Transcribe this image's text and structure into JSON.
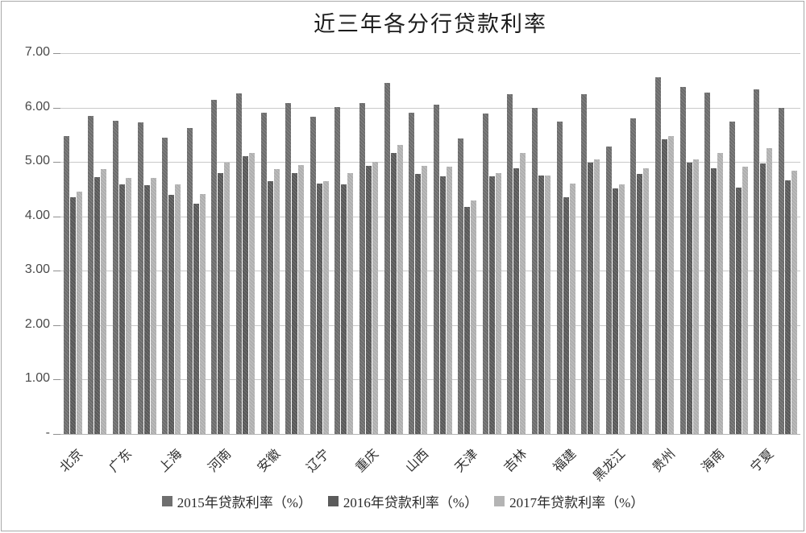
{
  "chart_data": {
    "type": "bar",
    "title": "近三年各分行贷款利率",
    "xlabel": "",
    "ylabel": "",
    "ylim": [
      0,
      7
    ],
    "grid": true,
    "legend_position": "bottom",
    "yticks": [
      {
        "label": "7.00",
        "value": 7
      },
      {
        "label": "6.00",
        "value": 6
      },
      {
        "label": "5.00",
        "value": 5
      },
      {
        "label": "4.00",
        "value": 4
      },
      {
        "label": "3.00",
        "value": 3
      },
      {
        "label": "2.00",
        "value": 2
      },
      {
        "label": "1.00",
        "value": 1
      },
      {
        "label": "-",
        "value": 0
      }
    ],
    "categories": [
      "北京",
      "",
      "广东",
      "",
      "上海",
      "",
      "河南",
      "",
      "安徽",
      "",
      "辽宁",
      "",
      "重庆",
      "",
      "山西",
      "",
      "天津",
      "",
      "吉林",
      "",
      "福建",
      "",
      "黑龙江",
      "",
      "贵州",
      "",
      "海南",
      "",
      "宁夏",
      ""
    ],
    "series": [
      {
        "name": "2015年贷款利率（%）",
        "color": "#6F6F6F",
        "values": [
          5.47,
          5.85,
          5.76,
          5.73,
          5.44,
          5.63,
          6.14,
          6.26,
          5.9,
          6.08,
          5.83,
          6.01,
          6.08,
          6.45,
          5.91,
          6.05,
          5.43,
          5.89,
          6.25,
          5.99,
          5.74,
          6.25,
          5.29,
          5.8,
          6.55,
          6.38,
          6.28,
          5.74,
          6.33,
          5.99
        ]
      },
      {
        "name": "2016年贷款利率（%）",
        "color": "#5B5B5B",
        "values": [
          4.35,
          4.72,
          4.59,
          4.57,
          4.39,
          4.24,
          4.79,
          5.1,
          4.65,
          4.79,
          4.61,
          4.59,
          4.93,
          5.17,
          4.78,
          4.73,
          4.17,
          4.73,
          4.89,
          4.75,
          4.35,
          4.99,
          4.51,
          4.78,
          5.42,
          4.99,
          4.89,
          4.53,
          4.97,
          4.66
        ]
      },
      {
        "name": "2017年贷款利率（%）",
        "color": "#B4B4B4",
        "values": [
          4.46,
          4.87,
          4.7,
          4.71,
          4.59,
          4.41,
          4.99,
          5.16,
          4.87,
          4.94,
          4.64,
          4.79,
          5.0,
          5.31,
          4.93,
          4.92,
          4.29,
          4.8,
          5.16,
          4.75,
          4.6,
          5.05,
          4.59,
          4.88,
          5.47,
          5.05,
          5.16,
          4.91,
          5.25,
          4.84
        ]
      }
    ]
  }
}
